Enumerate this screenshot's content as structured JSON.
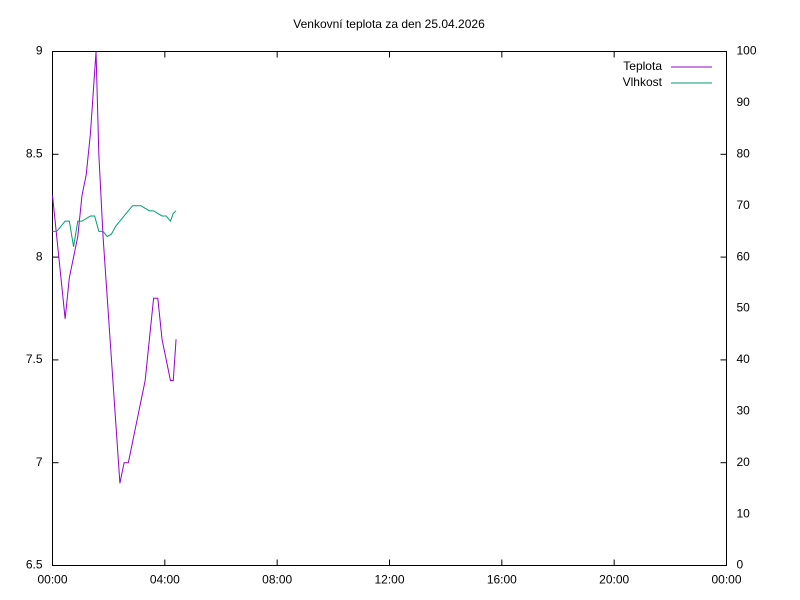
{
  "chart_data": {
    "type": "line",
    "title": "Venkovní teplota za den 25.04.2026",
    "x": [
      0,
      0.15,
      0.3,
      0.45,
      0.6,
      0.75,
      0.9,
      1.05,
      1.2,
      1.35,
      1.5,
      1.55,
      1.65,
      1.8,
      1.95,
      2.1,
      2.25,
      2.4,
      2.55,
      2.7,
      2.85,
      3.0,
      3.15,
      3.3,
      3.45,
      3.6,
      3.75,
      3.9,
      4.05,
      4.2,
      4.3,
      4.4
    ],
    "series": [
      {
        "name": "Teplota",
        "color": "#9400d3",
        "values": [
          8.3,
          8.1,
          7.9,
          7.7,
          7.9,
          8.0,
          8.1,
          8.3,
          8.4,
          8.6,
          8.9,
          9.0,
          8.5,
          8.1,
          7.8,
          7.5,
          7.2,
          6.9,
          7.0,
          7.0,
          7.1,
          7.2,
          7.3,
          7.4,
          7.6,
          7.8,
          7.8,
          7.6,
          7.5,
          7.4,
          7.4,
          7.6
        ]
      },
      {
        "name": "Vlhkost",
        "color": "#009e73",
        "axis": "y2",
        "values": [
          65,
          65,
          66,
          67,
          67,
          62,
          67,
          67,
          67.5,
          68,
          68,
          67,
          65,
          65,
          64,
          64.5,
          66,
          67,
          68,
          69,
          70,
          70,
          70,
          69.5,
          69,
          69,
          68.5,
          68,
          68,
          67,
          68.5,
          69
        ]
      }
    ],
    "xlim": [
      0,
      24
    ],
    "xticks": [
      {
        "value": 0,
        "label": "00:00"
      },
      {
        "value": 4,
        "label": "04:00"
      },
      {
        "value": 8,
        "label": "08:00"
      },
      {
        "value": 12,
        "label": "12:00"
      },
      {
        "value": 16,
        "label": "16:00"
      },
      {
        "value": 20,
        "label": "20:00"
      },
      {
        "value": 24,
        "label": "00:00"
      }
    ],
    "ylim": [
      6.5,
      9
    ],
    "yticks": [
      6.5,
      7,
      7.5,
      8,
      8.5,
      9
    ],
    "y2lim": [
      0,
      100
    ],
    "y2ticks": [
      0,
      10,
      20,
      30,
      40,
      50,
      60,
      70,
      80,
      90,
      100
    ],
    "legend": "top-right",
    "grid": false
  }
}
